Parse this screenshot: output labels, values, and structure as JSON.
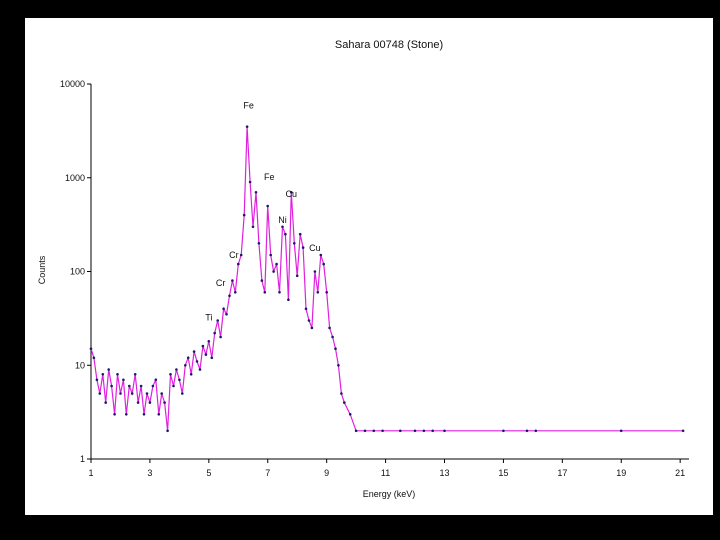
{
  "chart_data": {
    "type": "line",
    "title": "Sahara 00748 (Stone)",
    "xlabel": "Energy (keV)",
    "ylabel": "Counts",
    "y_scale": "log",
    "ylim": [
      1,
      10000
    ],
    "xlim": [
      1,
      21.3
    ],
    "x_ticks": [
      1,
      3,
      5,
      7,
      9,
      11,
      13,
      15,
      17,
      19,
      21
    ],
    "x_tick_labels": [
      "1",
      "3",
      "5",
      "7",
      "9",
      "11",
      "13",
      "15",
      "17",
      "19",
      "21"
    ],
    "y_ticks": [
      1,
      10,
      100,
      1000,
      10000
    ],
    "y_tick_labels": [
      "1",
      "10",
      "100",
      "1000",
      "10000"
    ],
    "grid": false,
    "line_color": "#e020e0",
    "marker_color": "#1a1a66",
    "series": [
      {
        "name": "",
        "x": [
          1.0,
          1.1,
          1.2,
          1.3,
          1.4,
          1.5,
          1.6,
          1.7,
          1.8,
          1.9,
          2.0,
          2.1,
          2.2,
          2.3,
          2.4,
          2.5,
          2.6,
          2.7,
          2.8,
          2.9,
          3.0,
          3.1,
          3.2,
          3.3,
          3.4,
          3.5,
          3.6,
          3.7,
          3.8,
          3.9,
          4.0,
          4.1,
          4.2,
          4.3,
          4.4,
          4.5,
          4.6,
          4.7,
          4.8,
          4.9,
          5.0,
          5.1,
          5.2,
          5.3,
          5.4,
          5.5,
          5.6,
          5.7,
          5.8,
          5.9,
          6.0,
          6.1,
          6.2,
          6.3,
          6.4,
          6.5,
          6.6,
          6.7,
          6.8,
          6.9,
          7.0,
          7.1,
          7.2,
          7.3,
          7.4,
          7.5,
          7.6,
          7.7,
          7.8,
          7.9,
          8.0,
          8.1,
          8.2,
          8.3,
          8.4,
          8.5,
          8.6,
          8.7,
          8.8,
          8.9,
          9.0,
          9.1,
          9.2,
          9.3,
          9.4,
          9.5,
          9.6,
          9.8,
          10.0,
          10.3,
          10.6,
          10.9,
          11.5,
          12.0,
          12.3,
          12.6,
          13.0,
          15.0,
          15.8,
          16.1,
          19.0,
          21.1
        ],
        "y": [
          15,
          12,
          7,
          5,
          8,
          4,
          9,
          6,
          3,
          8,
          5,
          7,
          3,
          6,
          5,
          8,
          4,
          6,
          3,
          5,
          4,
          6,
          7,
          3,
          5,
          4,
          2,
          8,
          6,
          9,
          7,
          5,
          10,
          12,
          8,
          14,
          11,
          9,
          16,
          13,
          18,
          12,
          22,
          30,
          20,
          40,
          35,
          55,
          80,
          60,
          120,
          150,
          400,
          3500,
          900,
          300,
          700,
          200,
          80,
          60,
          500,
          150,
          100,
          120,
          60,
          300,
          250,
          50,
          700,
          200,
          90,
          250,
          180,
          40,
          30,
          25,
          100,
          60,
          150,
          120,
          60,
          25,
          20,
          15,
          10,
          5,
          4,
          3,
          2,
          2,
          2,
          2,
          2,
          2,
          2,
          2,
          2,
          2,
          2,
          2,
          2,
          2
        ]
      }
    ],
    "annotations": [
      {
        "text": "Fe",
        "x": 6.35,
        "y": 5500
      },
      {
        "text": "Fe",
        "x": 7.05,
        "y": 950
      },
      {
        "text": "Cu",
        "x": 7.8,
        "y": 620
      },
      {
        "text": "Ni",
        "x": 7.5,
        "y": 330
      },
      {
        "text": "Cr",
        "x": 5.85,
        "y": 140
      },
      {
        "text": "Cr",
        "x": 5.4,
        "y": 70
      },
      {
        "text": "Ti",
        "x": 5.0,
        "y": 30
      },
      {
        "text": "Cu",
        "x": 8.6,
        "y": 165
      }
    ]
  }
}
